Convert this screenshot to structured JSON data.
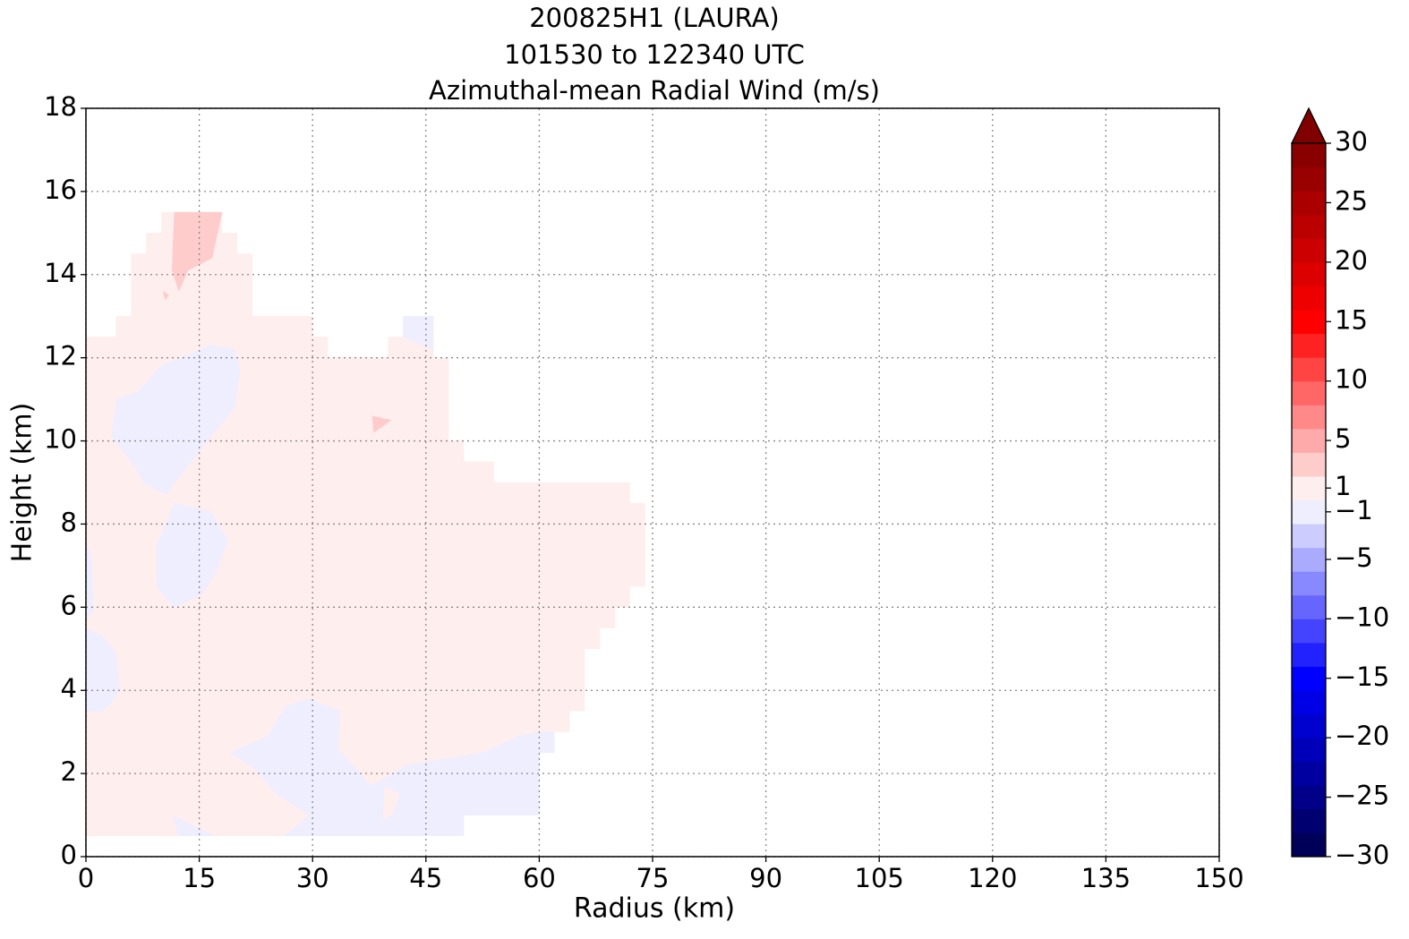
{
  "chart_data": {
    "type": "contourf",
    "title": [
      "200825H1 (LAURA)",
      "101530 to 122340 UTC",
      "Azimuthal-mean Radial Wind (m/s)"
    ],
    "xlabel": "Radius (km)",
    "ylabel": "Height (km)",
    "xlim": [
      0,
      150
    ],
    "ylim": [
      0,
      18
    ],
    "xticks": [
      0,
      15,
      30,
      45,
      60,
      75,
      90,
      105,
      120,
      135,
      150
    ],
    "yticks": [
      0,
      2,
      4,
      6,
      8,
      10,
      12,
      14,
      16,
      18
    ],
    "grid": true,
    "colormap": "seismic",
    "extend": "max",
    "colorbar": {
      "levels": [
        -30,
        -28,
        -26,
        -24,
        -22,
        -20,
        -18,
        -16,
        -14,
        -12,
        -10,
        -8,
        -6,
        -4,
        -2,
        0,
        2,
        4,
        6,
        8,
        10,
        12,
        14,
        16,
        18,
        20,
        22,
        24,
        26,
        28,
        30
      ],
      "ticks": [
        30,
        25,
        20,
        15,
        10,
        5,
        1,
        {
          "value": -1,
          "label": "−1"
        },
        {
          "value": -5,
          "label": "−5"
        },
        {
          "value": -10,
          "label": "−10"
        },
        {
          "value": -15,
          "label": "−15"
        },
        {
          "value": -20,
          "label": "−20"
        },
        {
          "value": -25,
          "label": "−25"
        },
        {
          "value": -30,
          "label": "−30"
        }
      ]
    },
    "regions": [
      {
        "range": [
          0,
          2
        ],
        "points": [
          [
            0,
            0.5
          ],
          [
            0,
            12.5
          ],
          [
            4,
            12.5
          ],
          [
            4,
            13
          ],
          [
            6,
            13
          ],
          [
            6,
            14.5
          ],
          [
            8,
            14.5
          ],
          [
            8,
            15
          ],
          [
            10,
            15
          ],
          [
            10,
            15.5
          ],
          [
            18,
            15.5
          ],
          [
            18,
            15
          ],
          [
            20,
            15
          ],
          [
            20,
            14.5
          ],
          [
            22,
            14.5
          ],
          [
            22,
            13
          ],
          [
            30,
            13
          ],
          [
            30,
            12.5
          ],
          [
            32,
            12.5
          ],
          [
            32,
            12
          ],
          [
            40,
            12
          ],
          [
            40,
            12.5
          ],
          [
            42,
            12.5
          ],
          [
            42,
            13
          ],
          [
            46,
            13
          ],
          [
            46,
            12
          ],
          [
            48,
            12
          ],
          [
            48,
            10
          ],
          [
            50,
            10
          ],
          [
            50,
            9.5
          ],
          [
            54,
            9.5
          ],
          [
            54,
            9
          ],
          [
            72,
            9
          ],
          [
            72,
            8.5
          ],
          [
            74,
            8.5
          ],
          [
            74,
            6.5
          ],
          [
            72,
            6.5
          ],
          [
            72,
            6
          ],
          [
            70,
            6
          ],
          [
            70,
            5.5
          ],
          [
            68,
            5.5
          ],
          [
            68,
            5
          ],
          [
            66,
            5
          ],
          [
            66,
            3.5
          ],
          [
            64,
            3.5
          ],
          [
            64,
            3
          ],
          [
            62,
            3
          ],
          [
            62,
            2.5
          ],
          [
            60,
            2.5
          ],
          [
            60,
            1
          ],
          [
            50,
            1
          ],
          [
            50,
            0.5
          ]
        ]
      },
      {
        "range": [
          -2,
          0
        ],
        "points": [
          [
            3.4,
            10.1
          ],
          [
            4,
            11
          ],
          [
            7,
            11.2
          ],
          [
            9.9,
            11.8
          ],
          [
            16.5,
            12.3
          ],
          [
            19.7,
            12.2
          ],
          [
            20.4,
            11.7
          ],
          [
            19.7,
            10.8
          ],
          [
            16.5,
            10.1
          ],
          [
            13.5,
            9.4
          ],
          [
            10.6,
            8.7
          ],
          [
            7.6,
            9
          ],
          [
            6.4,
            9.4
          ]
        ]
      },
      {
        "range": [
          -2,
          0
        ],
        "points": [
          [
            11.7,
            8.5
          ],
          [
            16.5,
            8.3
          ],
          [
            18.8,
            7.6
          ],
          [
            17.1,
            6.8
          ],
          [
            15.3,
            6.3
          ],
          [
            11.7,
            6
          ],
          [
            9.4,
            6.5
          ],
          [
            9.4,
            7.5
          ]
        ]
      },
      {
        "range": [
          -2,
          0
        ],
        "points": [
          [
            0,
            7.6
          ],
          [
            0.8,
            7.1
          ],
          [
            1,
            5.9
          ],
          [
            0,
            5.7
          ]
        ]
      },
      {
        "range": [
          -2,
          0
        ],
        "points": [
          [
            0,
            5.5
          ],
          [
            2.2,
            5.3
          ],
          [
            4,
            4.9
          ],
          [
            4.4,
            4
          ],
          [
            3.4,
            3.7
          ],
          [
            2.2,
            3.5
          ],
          [
            0,
            3.5
          ]
        ]
      },
      {
        "range": [
          -2,
          0
        ],
        "points": [
          [
            19.1,
            2.5
          ],
          [
            24.1,
            2.9
          ],
          [
            26.3,
            3.6
          ],
          [
            29.5,
            3.8
          ],
          [
            33.6,
            3.5
          ],
          [
            33.3,
            2.6
          ],
          [
            37.8,
            1.7
          ],
          [
            42.5,
            2.2
          ],
          [
            52.6,
            2.5
          ],
          [
            57.3,
            2.9
          ],
          [
            60.2,
            3
          ],
          [
            62,
            3
          ],
          [
            62,
            2.5
          ],
          [
            60,
            2.5
          ],
          [
            60,
            1
          ],
          [
            50,
            1
          ],
          [
            50,
            0.5
          ],
          [
            26.3,
            0.5
          ],
          [
            29.5,
            1
          ],
          [
            25.3,
            1.5
          ],
          [
            22.4,
            2.1
          ]
        ]
      },
      {
        "range": [
          -2,
          0
        ],
        "points": [
          [
            11.5,
            1
          ],
          [
            16.9,
            0.5
          ],
          [
            12.3,
            0.5
          ]
        ]
      },
      {
        "range": [
          -2,
          0
        ],
        "points": [
          [
            42,
            12.5
          ],
          [
            42,
            13
          ],
          [
            46,
            13
          ],
          [
            46,
            12.2
          ]
        ]
      },
      {
        "range": [
          0,
          2
        ],
        "points": [
          [
            39.6,
            1.7
          ],
          [
            41.6,
            1.5
          ],
          [
            40.5,
            1
          ],
          [
            39.3,
            0.9
          ]
        ]
      },
      {
        "range": [
          2,
          4
        ],
        "points": [
          [
            11.7,
            15.5
          ],
          [
            18,
            15.5
          ],
          [
            16.7,
            14.4
          ],
          [
            13.5,
            14.1
          ],
          [
            12.3,
            13.6
          ],
          [
            11.4,
            14.1
          ]
        ]
      },
      {
        "range": [
          2,
          4
        ],
        "points": [
          [
            37.9,
            10.6
          ],
          [
            40.4,
            10.5
          ],
          [
            38.1,
            10.2
          ]
        ]
      },
      {
        "range": [
          2,
          4
        ],
        "points": [
          [
            10.2,
            13.6
          ],
          [
            11,
            13.5
          ],
          [
            10.5,
            13.4
          ]
        ]
      }
    ]
  }
}
